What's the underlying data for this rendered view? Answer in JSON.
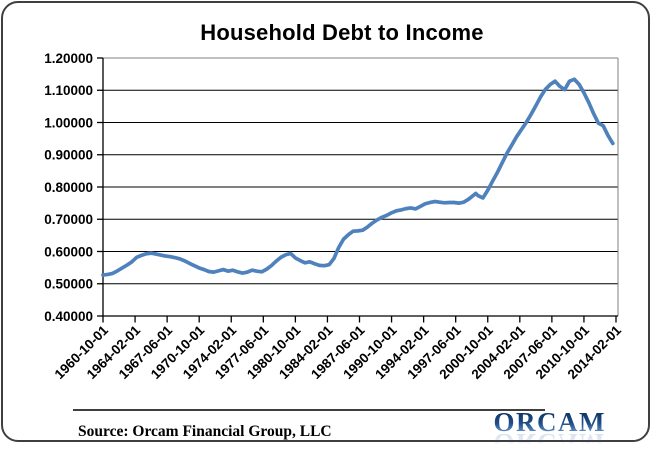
{
  "title": "Household Debt to Income",
  "footer": {
    "source_label": "Source: Orcam Financial Group, LLC",
    "logo_text": "ORCAM"
  },
  "colors": {
    "line": "#4F81BD",
    "gridline": "#000000",
    "axis": "#000000",
    "plot_border": "#808080",
    "text": "#000000",
    "frame_border": "#3f3f3f",
    "logo_blue_dark": "#0d2f5f",
    "logo_blue_light": "#7ba2d0",
    "background": "#ffffff"
  },
  "chart_data": {
    "type": "line",
    "title": "Household Debt to Income",
    "xlabel": "",
    "ylabel": "",
    "legend": "none",
    "grid": "horizontal",
    "ylim": [
      0.4,
      1.2
    ],
    "y_tick_step": 0.1,
    "y_tick_labels": [
      "1.20000",
      "1.10000",
      "1.00000",
      "0.90000",
      "0.80000",
      "0.70000",
      "0.60000",
      "0.50000",
      "0.40000"
    ],
    "x_tick_labels": [
      "1960-10-01",
      "1964-02-01",
      "1967-06-01",
      "1970-10-01",
      "1974-02-01",
      "1977-06-01",
      "1980-10-01",
      "1984-02-01",
      "1987-06-01",
      "1990-10-01",
      "1994-02-01",
      "1997-06-01",
      "2000-10-01",
      "2004-02-01",
      "2007-06-01",
      "2010-10-01",
      "2014-02-01"
    ],
    "series": [
      {
        "name": "Household Debt to Income",
        "points": [
          [
            "1960-10",
            0.527
          ],
          [
            "1961-04",
            0.529
          ],
          [
            "1961-10",
            0.532
          ],
          [
            "1962-04",
            0.54
          ],
          [
            "1962-10",
            0.549
          ],
          [
            "1963-04",
            0.558
          ],
          [
            "1963-10",
            0.568
          ],
          [
            "1964-04",
            0.582
          ],
          [
            "1964-10",
            0.588
          ],
          [
            "1965-04",
            0.593
          ],
          [
            "1965-10",
            0.595
          ],
          [
            "1966-04",
            0.592
          ],
          [
            "1966-10",
            0.589
          ],
          [
            "1967-04",
            0.586
          ],
          [
            "1967-10",
            0.584
          ],
          [
            "1968-04",
            0.581
          ],
          [
            "1968-10",
            0.577
          ],
          [
            "1969-04",
            0.571
          ],
          [
            "1969-10",
            0.563
          ],
          [
            "1970-04",
            0.556
          ],
          [
            "1970-10",
            0.549
          ],
          [
            "1971-04",
            0.544
          ],
          [
            "1971-10",
            0.538
          ],
          [
            "1972-04",
            0.536
          ],
          [
            "1972-10",
            0.54
          ],
          [
            "1973-04",
            0.544
          ],
          [
            "1973-10",
            0.539
          ],
          [
            "1974-04",
            0.542
          ],
          [
            "1974-10",
            0.537
          ],
          [
            "1975-04",
            0.533
          ],
          [
            "1975-10",
            0.536
          ],
          [
            "1976-04",
            0.542
          ],
          [
            "1976-10",
            0.539
          ],
          [
            "1977-04",
            0.537
          ],
          [
            "1977-10",
            0.545
          ],
          [
            "1978-04",
            0.556
          ],
          [
            "1978-10",
            0.57
          ],
          [
            "1979-04",
            0.582
          ],
          [
            "1979-10",
            0.59
          ],
          [
            "1980-04",
            0.594
          ],
          [
            "1980-10",
            0.58
          ],
          [
            "1981-04",
            0.572
          ],
          [
            "1981-10",
            0.565
          ],
          [
            "1982-04",
            0.568
          ],
          [
            "1982-10",
            0.562
          ],
          [
            "1983-04",
            0.557
          ],
          [
            "1983-10",
            0.556
          ],
          [
            "1984-04",
            0.559
          ],
          [
            "1984-10",
            0.578
          ],
          [
            "1985-04",
            0.612
          ],
          [
            "1985-10",
            0.638
          ],
          [
            "1986-04",
            0.652
          ],
          [
            "1986-10",
            0.663
          ],
          [
            "1987-04",
            0.664
          ],
          [
            "1987-10",
            0.666
          ],
          [
            "1988-04",
            0.676
          ],
          [
            "1988-10",
            0.688
          ],
          [
            "1989-04",
            0.698
          ],
          [
            "1989-10",
            0.706
          ],
          [
            "1990-04",
            0.712
          ],
          [
            "1990-10",
            0.72
          ],
          [
            "1991-04",
            0.726
          ],
          [
            "1991-10",
            0.729
          ],
          [
            "1992-04",
            0.733
          ],
          [
            "1992-10",
            0.735
          ],
          [
            "1993-04",
            0.732
          ],
          [
            "1993-10",
            0.74
          ],
          [
            "1994-04",
            0.748
          ],
          [
            "1994-10",
            0.752
          ],
          [
            "1995-04",
            0.755
          ],
          [
            "1995-10",
            0.753
          ],
          [
            "1996-04",
            0.751
          ],
          [
            "1996-10",
            0.752
          ],
          [
            "1997-04",
            0.752
          ],
          [
            "1997-10",
            0.75
          ],
          [
            "1998-04",
            0.753
          ],
          [
            "1998-10",
            0.762
          ],
          [
            "1999-04",
            0.774
          ],
          [
            "1999-07",
            0.78
          ],
          [
            "1999-10",
            0.773
          ],
          [
            "2000-04",
            0.766
          ],
          [
            "2000-10",
            0.79
          ],
          [
            "2001-04",
            0.818
          ],
          [
            "2001-10",
            0.845
          ],
          [
            "2002-04",
            0.875
          ],
          [
            "2002-10",
            0.905
          ],
          [
            "2003-04",
            0.93
          ],
          [
            "2003-10",
            0.956
          ],
          [
            "2004-04",
            0.978
          ],
          [
            "2004-10",
            1.0
          ],
          [
            "2005-04",
            1.025
          ],
          [
            "2005-10",
            1.052
          ],
          [
            "2006-04",
            1.08
          ],
          [
            "2006-10",
            1.103
          ],
          [
            "2007-04",
            1.118
          ],
          [
            "2007-10",
            1.128
          ],
          [
            "2008-04",
            1.112
          ],
          [
            "2008-10",
            1.102
          ],
          [
            "2009-04",
            1.128
          ],
          [
            "2009-10",
            1.134
          ],
          [
            "2010-04",
            1.118
          ],
          [
            "2010-10",
            1.092
          ],
          [
            "2011-04",
            1.062
          ],
          [
            "2011-10",
            1.028
          ],
          [
            "2012-04",
            0.998
          ],
          [
            "2012-10",
            0.99
          ],
          [
            "2013-04",
            0.96
          ],
          [
            "2013-10",
            0.935
          ]
        ]
      }
    ]
  }
}
